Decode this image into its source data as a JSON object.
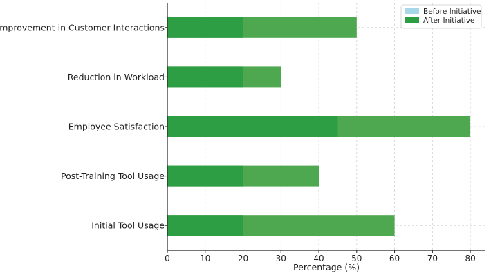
{
  "chart_data": {
    "type": "bar",
    "orientation": "horizontal",
    "stacked": false,
    "categories": [
      "Improvement in Customer Interactions",
      "Reduction in Workload",
      "Employee Satisfaction",
      "Post-Training Tool Usage",
      "Initial Tool Usage"
    ],
    "series": [
      {
        "name": "Before Initiative",
        "values": [
          20,
          20,
          45,
          20,
          20
        ],
        "color": "#a6d8ea"
      },
      {
        "name": "After Initiative",
        "values": [
          50,
          30,
          80,
          40,
          60
        ],
        "color": "#2e9e44"
      }
    ],
    "xlabel": "Percentage (%)",
    "ylabel": "",
    "xlim": [
      0,
      84
    ],
    "xticks": [
      0,
      10,
      20,
      30,
      40,
      50,
      60,
      70,
      80
    ],
    "grid": true,
    "legend_position": "top-right"
  },
  "colors": {
    "overlap": "#2e9e44",
    "after_only": "#4ea84f",
    "grid": "#d0d0d0",
    "axis": "#222222"
  }
}
